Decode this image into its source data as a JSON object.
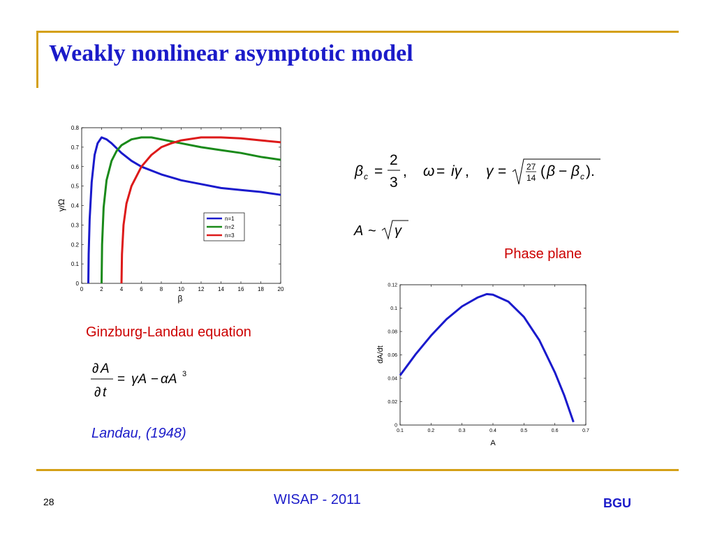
{
  "slide": {
    "title": "Weakly nonlinear asymptotic model",
    "ginzburg_label": "Ginzburg-Landau equation",
    "landau_ref": "Landau, (1948)",
    "phase_plane_label": "Phase plane",
    "page_number": "28",
    "footer_center": "WISAP - 2011",
    "footer_right": "BGU",
    "accent_color": "#d4a017",
    "title_color": "#1b1bc9",
    "label_red": "#cc0000"
  },
  "chart_data": [
    {
      "type": "line",
      "xlabel": "β",
      "ylabel": "γ/Ω",
      "xlim": [
        0,
        20
      ],
      "ylim": [
        0,
        0.8
      ],
      "xticks": [
        0,
        2,
        4,
        6,
        8,
        10,
        12,
        14,
        16,
        18,
        20
      ],
      "yticks": [
        0,
        0.1,
        0.2,
        0.3,
        0.4,
        0.5,
        0.6,
        0.7,
        0.8
      ],
      "legend_position": "center-right",
      "series": [
        {
          "name": "n=1",
          "color": "#1a1acc",
          "x": [
            0.67,
            0.7,
            0.8,
            1.0,
            1.3,
            1.6,
            2.0,
            2.5,
            3.0,
            4.0,
            5.0,
            6.0,
            8.0,
            10.0,
            12.0,
            14.0,
            16.0,
            18.0,
            20.0
          ],
          "y": [
            0,
            0.15,
            0.33,
            0.52,
            0.66,
            0.72,
            0.75,
            0.74,
            0.72,
            0.67,
            0.63,
            0.6,
            0.56,
            0.53,
            0.51,
            0.49,
            0.48,
            0.47,
            0.455
          ]
        },
        {
          "name": "n=2",
          "color": "#1a8a1a",
          "x": [
            2.0,
            2.05,
            2.2,
            2.5,
            3.0,
            3.5,
            4.0,
            5.0,
            6.0,
            7.0,
            8.0,
            10.0,
            12.0,
            14.0,
            16.0,
            18.0,
            20.0
          ],
          "y": [
            0,
            0.2,
            0.39,
            0.53,
            0.63,
            0.68,
            0.71,
            0.74,
            0.75,
            0.75,
            0.74,
            0.72,
            0.7,
            0.685,
            0.67,
            0.65,
            0.635
          ]
        },
        {
          "name": "n=3",
          "color": "#dd1a1a",
          "x": [
            4.0,
            4.05,
            4.2,
            4.5,
            5.0,
            6.0,
            7.0,
            8.0,
            9.0,
            10.0,
            12.0,
            14.0,
            16.0,
            18.0,
            20.0
          ],
          "y": [
            0,
            0.15,
            0.3,
            0.41,
            0.5,
            0.6,
            0.66,
            0.7,
            0.72,
            0.735,
            0.75,
            0.75,
            0.745,
            0.735,
            0.725
          ]
        }
      ]
    },
    {
      "type": "line",
      "xlabel": "A",
      "ylabel": "dA/dt",
      "xlim": [
        0.1,
        0.7
      ],
      "ylim": [
        0,
        0.12
      ],
      "xticks": [
        0.1,
        0.2,
        0.3,
        0.4,
        0.5,
        0.6,
        0.7
      ],
      "yticks": [
        0,
        0.02,
        0.04,
        0.06,
        0.08,
        0.1,
        0.12
      ],
      "series": [
        {
          "color": "#1a1acc",
          "x": [
            0.1,
            0.15,
            0.2,
            0.25,
            0.3,
            0.35,
            0.38,
            0.4,
            0.45,
            0.5,
            0.55,
            0.6,
            0.63,
            0.66
          ],
          "y": [
            0.0425,
            0.0605,
            0.0765,
            0.0905,
            0.1015,
            0.109,
            0.112,
            0.1115,
            0.1055,
            0.0925,
            0.0725,
            0.045,
            0.0255,
            0.0025
          ]
        }
      ]
    }
  ]
}
